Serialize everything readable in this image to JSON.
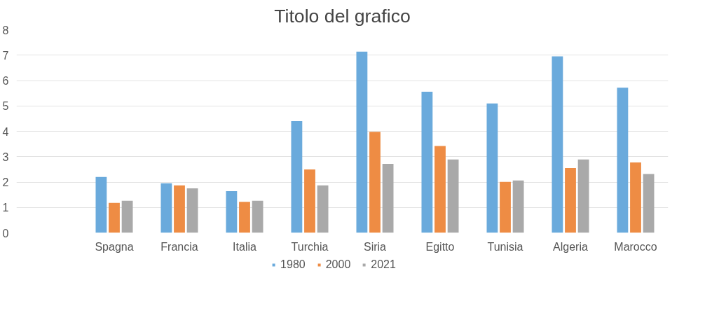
{
  "chart_data": {
    "type": "bar",
    "title": "Titolo del grafico",
    "categories": [
      null,
      "Spagna",
      "Francia",
      "Italia",
      "Turchia",
      "Siria",
      "Egitto",
      "Tunisia",
      "Algeria",
      "Marocco"
    ],
    "series": [
      {
        "name": "1980",
        "color": "#6aaadc",
        "values": [
          null,
          2.2,
          1.95,
          1.64,
          4.4,
          7.14,
          5.56,
          5.1,
          6.95,
          5.72
        ]
      },
      {
        "name": "2000",
        "color": "#ee8c44",
        "values": [
          null,
          1.18,
          1.87,
          1.22,
          2.5,
          3.98,
          3.42,
          2.01,
          2.55,
          2.77
        ]
      },
      {
        "name": "2021",
        "color": "#a9a9a9",
        "values": [
          null,
          1.26,
          1.75,
          1.26,
          1.87,
          2.72,
          2.89,
          2.06,
          2.89,
          2.32
        ]
      }
    ],
    "ylim": [
      0,
      8
    ],
    "yticks": [
      0,
      1,
      2,
      3,
      4,
      5,
      6,
      7,
      8
    ],
    "grid": "y",
    "legend": "bottom"
  }
}
